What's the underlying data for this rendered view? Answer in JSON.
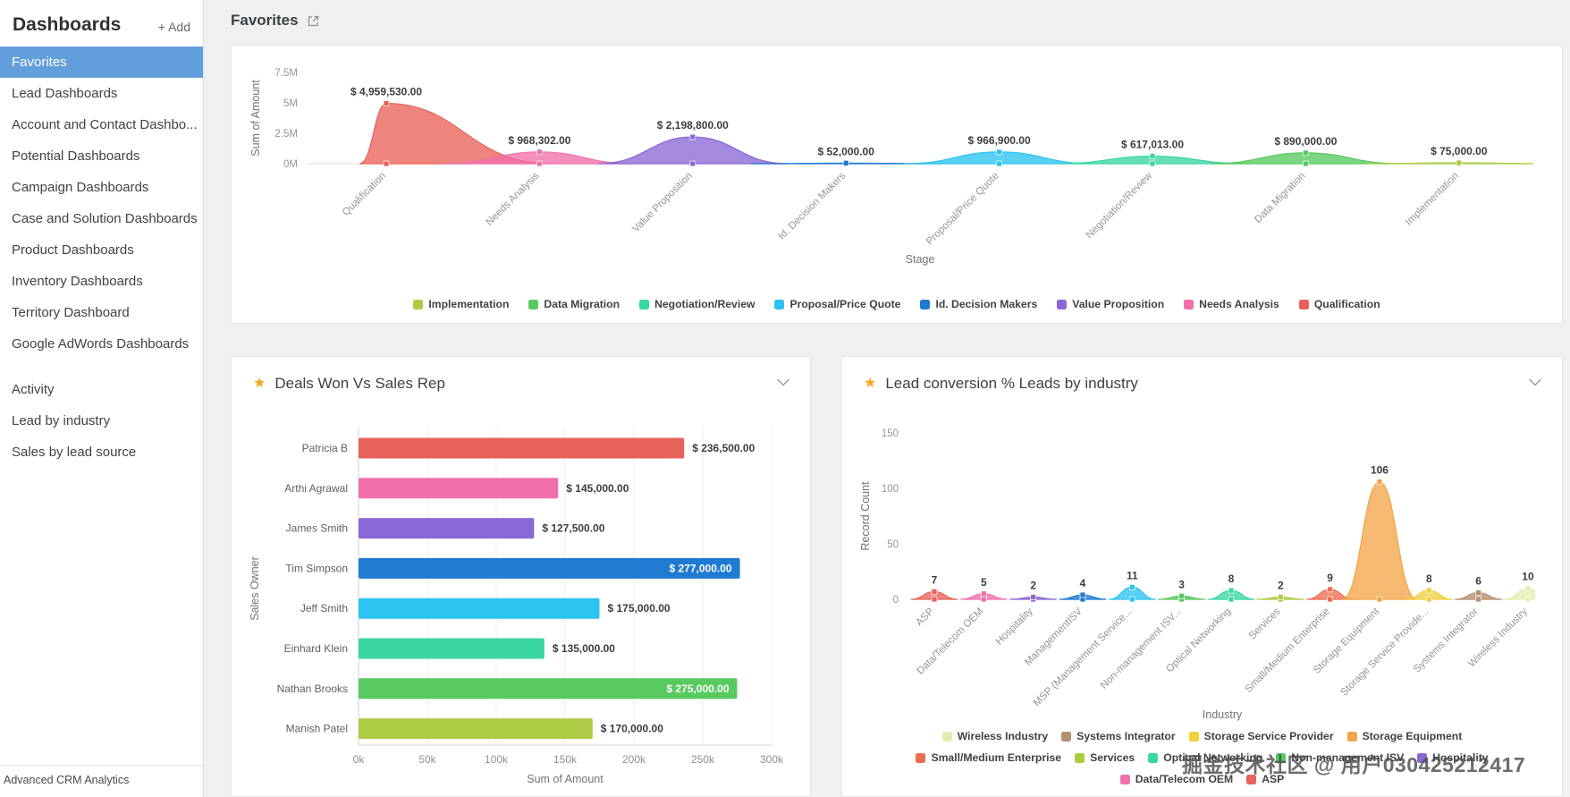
{
  "sidebar": {
    "title": "Dashboards",
    "add_label": "+ Add",
    "items": [
      {
        "label": "Favorites",
        "selected": true
      },
      {
        "label": "Lead Dashboards",
        "selected": false
      },
      {
        "label": "Account and Contact Dashbo...",
        "selected": false
      },
      {
        "label": "Potential Dashboards",
        "selected": false
      },
      {
        "label": "Campaign Dashboards",
        "selected": false
      },
      {
        "label": "Case and Solution Dashboards",
        "selected": false
      },
      {
        "label": "Product Dashboards",
        "selected": false
      },
      {
        "label": "Inventory Dashboards",
        "selected": false
      },
      {
        "label": "Territory Dashboard",
        "selected": false
      },
      {
        "label": "Google AdWords Dashboards",
        "selected": false
      }
    ],
    "secondary_items": [
      {
        "label": "Activity"
      },
      {
        "label": "Lead by industry"
      },
      {
        "label": "Sales by lead source"
      }
    ],
    "footer": "Advanced CRM Analytics"
  },
  "header": {
    "title": "Favorites"
  },
  "watermark": "掘金技术社区 @ 用户030425212417",
  "colors": {
    "sidebar_selected": "#619edb",
    "star": "#f7a81c",
    "background": "#eef0f1"
  },
  "chart_data": [
    {
      "type": "area",
      "title": "",
      "xlabel": "Stage",
      "ylabel": "Sum of Amount",
      "y_ticks": [
        "0M",
        "2.5M",
        "5M",
        "7.5M"
      ],
      "ylim": [
        0,
        7500000
      ],
      "categories": [
        "Qualification",
        "Needs Analysis",
        "Value Proposition",
        "Id. Decision Makers",
        "Proposal/Price Quote",
        "Negotiation/Review",
        "Data Migration",
        "Implementation"
      ],
      "values": [
        4959530,
        968302,
        2198800,
        52000,
        966900,
        617013,
        890000,
        75000
      ],
      "value_labels": [
        "$ 4,959,530.00",
        "$ 968,302.00",
        "$ 2,198,800.00",
        "$ 52,000.00",
        "$ 966,900.00",
        "$ 617,013.00",
        "$ 890,000.00",
        "$ 75,000.00"
      ],
      "colors": [
        "#e8625a",
        "#f170ab",
        "#8a68d6",
        "#1f7ad1",
        "#2cc3f0",
        "#3ad6a4",
        "#57c95f",
        "#aecb44"
      ],
      "legend": [
        {
          "label": "Implementation",
          "color": "#aecb44"
        },
        {
          "label": "Data Migration",
          "color": "#57c95f"
        },
        {
          "label": "Negotiation/Review",
          "color": "#3ad6a4"
        },
        {
          "label": "Proposal/Price Quote",
          "color": "#2cc3f0"
        },
        {
          "label": "Id. Decision Makers",
          "color": "#1f7ad1"
        },
        {
          "label": "Value Proposition",
          "color": "#8a68d6"
        },
        {
          "label": "Needs Analysis",
          "color": "#f170ab"
        },
        {
          "label": "Qualification",
          "color": "#e8625a"
        }
      ],
      "legend_position": "bottom",
      "grid": false
    },
    {
      "type": "bar",
      "title": "Deals Won Vs Sales Rep",
      "xlabel": "Sum of Amount",
      "ylabel": "Sales Owner",
      "x_ticks": [
        "0k",
        "50k",
        "100k",
        "150k",
        "200k",
        "250k",
        "300k"
      ],
      "xlim": [
        0,
        300000
      ],
      "categories": [
        "Patricia B",
        "Arthi Agrawal",
        "James Smith",
        "Tim Simpson",
        "Jeff Smith",
        "Einhard Klein",
        "Nathan Brooks",
        "Manish Patel"
      ],
      "values": [
        236500,
        145000,
        127500,
        277000,
        175000,
        135000,
        275000,
        170000
      ],
      "value_labels": [
        "$ 236,500.00",
        "$ 145,000.00",
        "$ 127,500.00",
        "$ 277,000.00",
        "$ 175,000.00",
        "$ 135,000.00",
        "$ 275,000.00",
        "$ 170,000.00"
      ],
      "label_inside": [
        false,
        false,
        false,
        true,
        false,
        false,
        true,
        false
      ],
      "colors": [
        "#e8625a",
        "#f170ab",
        "#8a68d6",
        "#1f7ad1",
        "#2cc3f0",
        "#3ad6a4",
        "#57c95f",
        "#aecb44"
      ],
      "grid": true
    },
    {
      "type": "area",
      "title": "Lead conversion % Leads by industry",
      "xlabel": "Industry",
      "ylabel": "Record Count",
      "y_ticks": [
        "0",
        "50",
        "100",
        "150"
      ],
      "ylim": [
        0,
        150
      ],
      "categories": [
        "ASP",
        "Data/Telecom OEM",
        "Hospitality",
        "ManagementISV",
        "MSP (Management Service...",
        "Non-management ISV...",
        "Optical Networking",
        "Services",
        "Small/Medium Enterprise",
        "Storage Equipment",
        "Storage Service Provide...",
        "Systems Integrator",
        "Wireless Industry"
      ],
      "values": [
        7,
        5,
        2,
        4,
        11,
        3,
        8,
        2,
        9,
        106,
        8,
        6,
        10
      ],
      "value_labels": [
        "7",
        "5",
        "2",
        "4",
        "11",
        "3",
        "8",
        "2",
        "9",
        "106",
        "8",
        "6",
        "10"
      ],
      "colors": [
        "#e8625a",
        "#f170ab",
        "#8a68d6",
        "#1f7ad1",
        "#2cc3f0",
        "#57c95f",
        "#3ad6a4",
        "#aecb44",
        "#ee6e52",
        "#f2a54a",
        "#f2d03c",
        "#b3906f",
        "#e4edb0"
      ],
      "legend": [
        {
          "label": "Wireless Industry",
          "color": "#e4edb0"
        },
        {
          "label": "Systems Integrator",
          "color": "#b3906f"
        },
        {
          "label": "Storage Service Provider",
          "color": "#f2d03c"
        },
        {
          "label": "Storage Equipment",
          "color": "#f2a54a"
        },
        {
          "label": "Small/Medium Enterprise",
          "color": "#ee6e52"
        },
        {
          "label": "Services",
          "color": "#aecb44"
        },
        {
          "label": "Optical Networking",
          "color": "#3ad6a4"
        },
        {
          "label": "Non-management ISV",
          "color": "#57c95f"
        },
        {
          "label": "Hospitality",
          "color": "#8a68d6"
        },
        {
          "label": "Data/Telecom OEM",
          "color": "#f170ab"
        },
        {
          "label": "ASP",
          "color": "#e8625a"
        }
      ],
      "legend_position": "bottom",
      "grid": false
    }
  ]
}
